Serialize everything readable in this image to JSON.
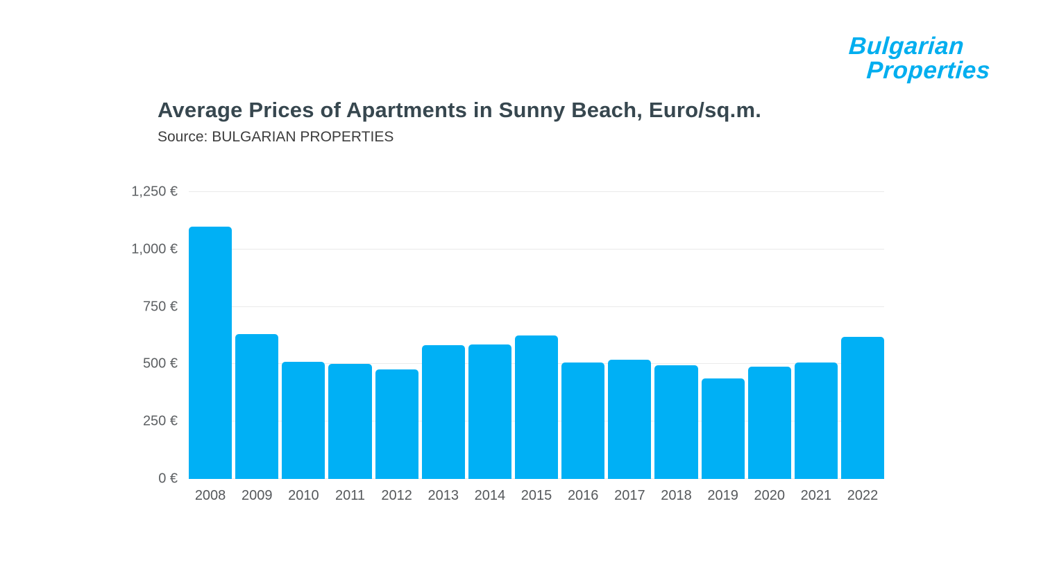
{
  "logo": {
    "line1": "Bulgarian",
    "line2": "Properties",
    "color": "#00aeef"
  },
  "header": {
    "title": "Average Prices of Apartments in Sunny Beach, Euro/sq.m.",
    "source": "Source: BULGARIAN PROPERTIES"
  },
  "chart_data": {
    "type": "bar",
    "title": "Average Prices of Apartments in Sunny Beach, Euro/sq.m.",
    "subtitle": "Source: BULGARIAN PROPERTIES",
    "categories": [
      "2008",
      "2009",
      "2010",
      "2011",
      "2012",
      "2013",
      "2014",
      "2015",
      "2016",
      "2017",
      "2018",
      "2019",
      "2020",
      "2021",
      "2022"
    ],
    "values": [
      1100,
      630,
      510,
      500,
      478,
      583,
      585,
      625,
      508,
      520,
      495,
      438,
      490,
      508,
      620
    ],
    "xlabel": "",
    "ylabel": "",
    "ylim": [
      0,
      1250
    ],
    "yticks": [
      0,
      250,
      500,
      750,
      1000,
      1250
    ],
    "ytick_labels": [
      "0 €",
      "250 €",
      "500 €",
      "750 €",
      "1,000 €",
      "1,250 €"
    ],
    "grid": true,
    "legend": false,
    "bar_color": "#00b0f5",
    "gridline_color": "#eaeaea"
  }
}
